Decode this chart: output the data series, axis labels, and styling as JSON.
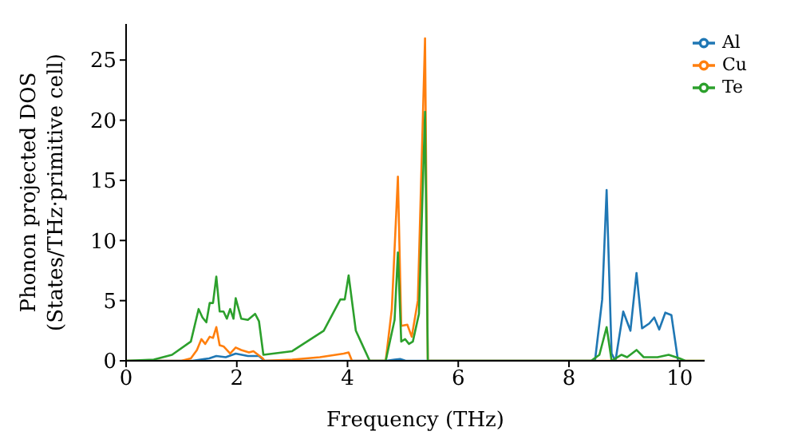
{
  "chart_data": {
    "type": "line",
    "xlabel": "Frequency (THz)",
    "ylabel": "Phonon projected DOS\n(States/THz·primitive cell)",
    "xlim": [
      0,
      10.45
    ],
    "ylim": [
      0,
      28
    ],
    "xticks": [
      0,
      2,
      4,
      6,
      8,
      10
    ],
    "yticks": [
      0,
      5,
      10,
      15,
      20,
      25
    ],
    "grid": false,
    "legend": "top right",
    "marker": "none",
    "line_style": "solid",
    "series": [
      {
        "name": "Al",
        "color": "#1f77b4",
        "x": [
          0,
          1.2,
          1.5,
          1.63,
          1.8,
          1.98,
          2.2,
          2.4,
          2.5,
          4.7,
          4.85,
          4.95,
          5.05,
          5.45,
          8.47,
          8.6,
          8.68,
          8.77,
          8.84,
          8.98,
          9.11,
          9.22,
          9.32,
          9.45,
          9.54,
          9.63,
          9.74,
          9.85,
          9.97,
          10.0
        ],
        "values": [
          0,
          0,
          0.2,
          0.4,
          0.3,
          0.6,
          0.4,
          0.4,
          0,
          0,
          0.1,
          0.15,
          0,
          0,
          0,
          5.1,
          14.2,
          0.6,
          0,
          4.1,
          2.5,
          7.3,
          2.7,
          3.1,
          3.6,
          2.6,
          4.0,
          3.8,
          0,
          0
        ]
      },
      {
        "name": "Cu",
        "color": "#ff7f0e",
        "x": [
          0,
          1.0,
          1.17,
          1.28,
          1.36,
          1.43,
          1.51,
          1.57,
          1.63,
          1.69,
          1.76,
          1.82,
          1.88,
          1.98,
          2.08,
          2.22,
          2.3,
          2.47,
          2.5,
          3.0,
          3.5,
          3.93,
          4.02,
          4.08,
          4.69,
          4.8,
          4.91,
          4.97,
          5.08,
          5.16,
          5.27,
          5.4,
          5.45,
          10.45
        ],
        "values": [
          0,
          0,
          0.2,
          0.9,
          1.8,
          1.4,
          2.0,
          1.9,
          2.8,
          1.3,
          1.2,
          0.9,
          0.6,
          1.1,
          0.9,
          0.7,
          0.8,
          0.2,
          0,
          0.1,
          0.3,
          0.6,
          0.7,
          0,
          0,
          4.3,
          15.3,
          2.9,
          3.0,
          2.0,
          5.0,
          26.8,
          0,
          0
        ]
      },
      {
        "name": "Te",
        "color": "#2ca02c",
        "x": [
          0,
          0.5,
          0.83,
          1.17,
          1.31,
          1.38,
          1.45,
          1.51,
          1.57,
          1.63,
          1.69,
          1.76,
          1.82,
          1.88,
          1.94,
          1.98,
          2.08,
          2.2,
          2.33,
          2.4,
          2.48,
          3.0,
          3.57,
          3.87,
          3.95,
          4.02,
          4.15,
          4.25,
          4.4,
          4.69,
          4.85,
          4.91,
          4.97,
          5.04,
          5.11,
          5.18,
          5.29,
          5.4,
          5.45,
          8.4,
          8.55,
          8.68,
          8.77,
          8.95,
          9.05,
          9.22,
          9.35,
          9.6,
          9.8,
          10.0,
          10.1,
          10.45
        ],
        "values": [
          0,
          0.1,
          0.5,
          1.6,
          4.3,
          3.6,
          3.2,
          4.8,
          4.8,
          7.0,
          4.1,
          4.1,
          3.5,
          4.3,
          3.5,
          5.2,
          3.5,
          3.4,
          3.9,
          3.3,
          0.5,
          0.8,
          2.5,
          5.1,
          5.1,
          7.1,
          2.5,
          1.5,
          0,
          0,
          3.4,
          9.0,
          1.6,
          1.8,
          1.4,
          1.6,
          3.9,
          20.7,
          0,
          0,
          0.5,
          2.8,
          0,
          0.5,
          0.3,
          0.9,
          0.3,
          0.3,
          0.5,
          0.2,
          0,
          0
        ]
      }
    ]
  }
}
